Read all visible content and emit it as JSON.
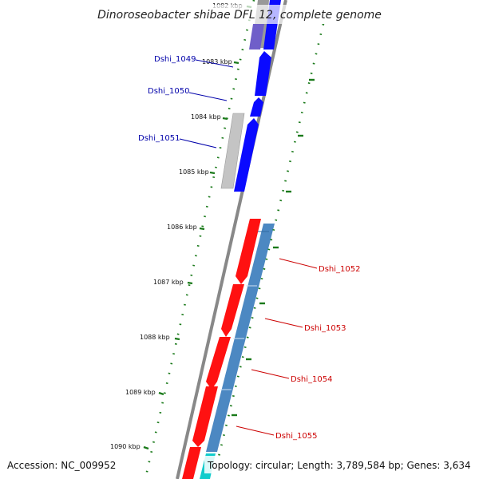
{
  "title": "Dinoroseobacter shibae DFL 12, complete genome",
  "footer": {
    "accession": "Accession: NC_009952",
    "topology": "Topology: circular; Length: 3,789,584 bp; Genes: 3,634"
  },
  "ticks": [
    {
      "label": "1082 kbp"
    },
    {
      "label": "1083 kbp"
    },
    {
      "label": "1084 kbp"
    },
    {
      "label": "1085 kbp"
    },
    {
      "label": "1086 kbp"
    },
    {
      "label": "1087 kbp"
    },
    {
      "label": "1088 kbp"
    },
    {
      "label": "1089 kbp"
    },
    {
      "label": "1090 kbp"
    }
  ],
  "genes_left": [
    {
      "label": "Dshi_1049"
    },
    {
      "label": "Dshi_1050"
    },
    {
      "label": "Dshi_1051"
    }
  ],
  "genes_right": [
    {
      "label": "Dshi_1052"
    },
    {
      "label": "Dshi_1053"
    },
    {
      "label": "Dshi_1054"
    },
    {
      "label": "Dshi_1055"
    }
  ],
  "colors": {
    "backbone": "#808080",
    "forward_cds": "#0000ff",
    "reverse_cds": "#ff0000",
    "steel_blue": "#4a86c0",
    "gray_feature": "#c0c0c0",
    "purple_feature": "#7060c8",
    "cyan_feature": "#00cccc",
    "tick_green": "#1a7a1a",
    "label_blue": "#0000aa",
    "label_red": "#cc0000"
  }
}
